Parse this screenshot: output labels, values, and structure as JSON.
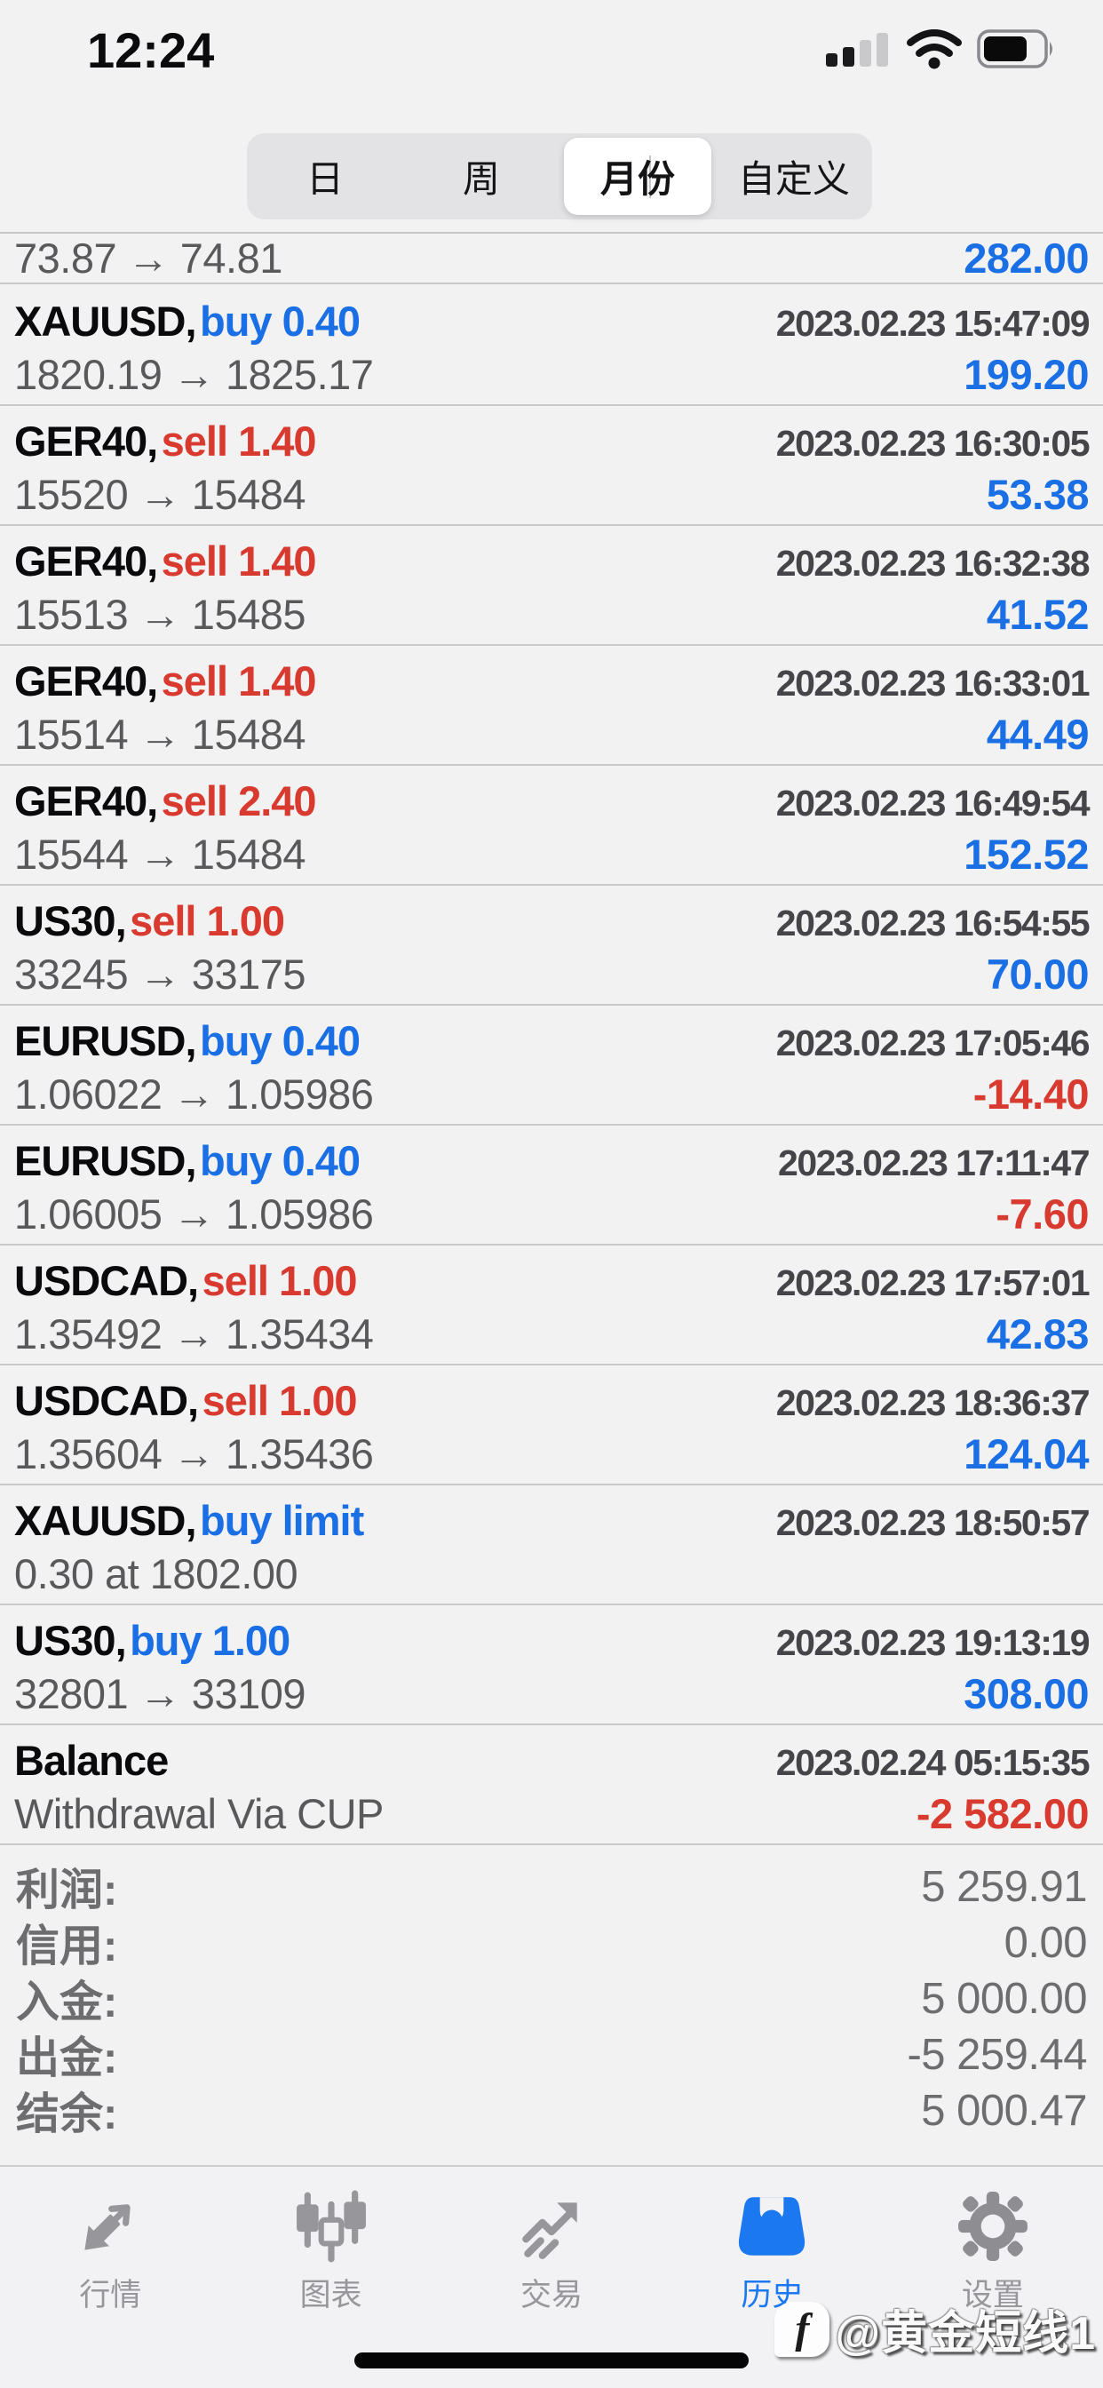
{
  "status_bar": {
    "time": "12:24"
  },
  "colors": {
    "buy_profit_blue": "#1b6fe4",
    "sell_loss_red": "#d93a2f",
    "tab_active_blue": "#1b78f0",
    "text_dark": "#0a0a0c",
    "text_gray": "#59595b",
    "summary_gray": "#6d6d70"
  },
  "period_tabs": {
    "options": [
      "日",
      "周",
      "月份",
      "自定义"
    ],
    "selected": "月份",
    "selected_index": 2
  },
  "partial_row": {
    "detail": "73.87 → 74.81",
    "profit": "282.00",
    "profit_sign": "pos"
  },
  "trades": [
    {
      "symbol": "XAUUSD",
      "side": "buy 0.40",
      "side_type": "buy",
      "datetime": "2023.02.23 15:47:09",
      "detail": "1820.19 → 1825.17",
      "profit": "199.20",
      "profit_sign": "pos"
    },
    {
      "symbol": "GER40",
      "side": "sell 1.40",
      "side_type": "sell",
      "datetime": "2023.02.23 16:30:05",
      "detail": "15520 → 15484",
      "profit": "53.38",
      "profit_sign": "pos"
    },
    {
      "symbol": "GER40",
      "side": "sell 1.40",
      "side_type": "sell",
      "datetime": "2023.02.23 16:32:38",
      "detail": "15513 → 15485",
      "profit": "41.52",
      "profit_sign": "pos"
    },
    {
      "symbol": "GER40",
      "side": "sell 1.40",
      "side_type": "sell",
      "datetime": "2023.02.23 16:33:01",
      "detail": "15514 → 15484",
      "profit": "44.49",
      "profit_sign": "pos"
    },
    {
      "symbol": "GER40",
      "side": "sell 2.40",
      "side_type": "sell",
      "datetime": "2023.02.23 16:49:54",
      "detail": "15544 → 15484",
      "profit": "152.52",
      "profit_sign": "pos"
    },
    {
      "symbol": "US30",
      "side": "sell 1.00",
      "side_type": "sell",
      "datetime": "2023.02.23 16:54:55",
      "detail": "33245 → 33175",
      "profit": "70.00",
      "profit_sign": "pos"
    },
    {
      "symbol": "EURUSD",
      "side": "buy 0.40",
      "side_type": "buy",
      "datetime": "2023.02.23 17:05:46",
      "detail": "1.06022 → 1.05986",
      "profit": "-14.40",
      "profit_sign": "neg"
    },
    {
      "symbol": "EURUSD",
      "side": "buy 0.40",
      "side_type": "buy",
      "datetime": "2023.02.23 17:11:47",
      "detail": "1.06005 → 1.05986",
      "profit": "-7.60",
      "profit_sign": "neg"
    },
    {
      "symbol": "USDCAD",
      "side": "sell 1.00",
      "side_type": "sell",
      "datetime": "2023.02.23 17:57:01",
      "detail": "1.35492 → 1.35434",
      "profit": "42.83",
      "profit_sign": "pos"
    },
    {
      "symbol": "USDCAD",
      "side": "sell 1.00",
      "side_type": "sell",
      "datetime": "2023.02.23 18:36:37",
      "detail": "1.35604 → 1.35436",
      "profit": "124.04",
      "profit_sign": "pos"
    },
    {
      "symbol": "XAUUSD",
      "side": "buy limit",
      "side_type": "buy",
      "datetime": "2023.02.23 18:50:57",
      "detail": "0.30 at 1802.00",
      "profit": "",
      "profit_sign": ""
    },
    {
      "symbol": "US30",
      "side": "buy 1.00",
      "side_type": "buy",
      "datetime": "2023.02.23 19:13:19",
      "detail": "32801 → 33109",
      "profit": "308.00",
      "profit_sign": "pos"
    },
    {
      "symbol": "Balance",
      "side": "",
      "side_type": "",
      "datetime": "2023.02.24 05:15:35",
      "detail": "Withdrawal Via CUP",
      "profit": "-2 582.00",
      "profit_sign": "neg"
    }
  ],
  "summary": {
    "rows": [
      {
        "label": "利润:",
        "value": "5 259.91"
      },
      {
        "label": "信用:",
        "value": "0.00"
      },
      {
        "label": "入金:",
        "value": "5 000.00"
      },
      {
        "label": "出金:",
        "value": "-5 259.44"
      },
      {
        "label": "结余:",
        "value": "5 000.47"
      }
    ]
  },
  "tab_bar": {
    "tabs": [
      {
        "label": "行情",
        "active": false
      },
      {
        "label": "图表",
        "active": false
      },
      {
        "label": "交易",
        "active": false
      },
      {
        "label": "历史",
        "active": true
      },
      {
        "label": "设置",
        "active": false
      }
    ]
  },
  "watermark": {
    "logo_letter": "f",
    "text": "@黄金短线1"
  }
}
